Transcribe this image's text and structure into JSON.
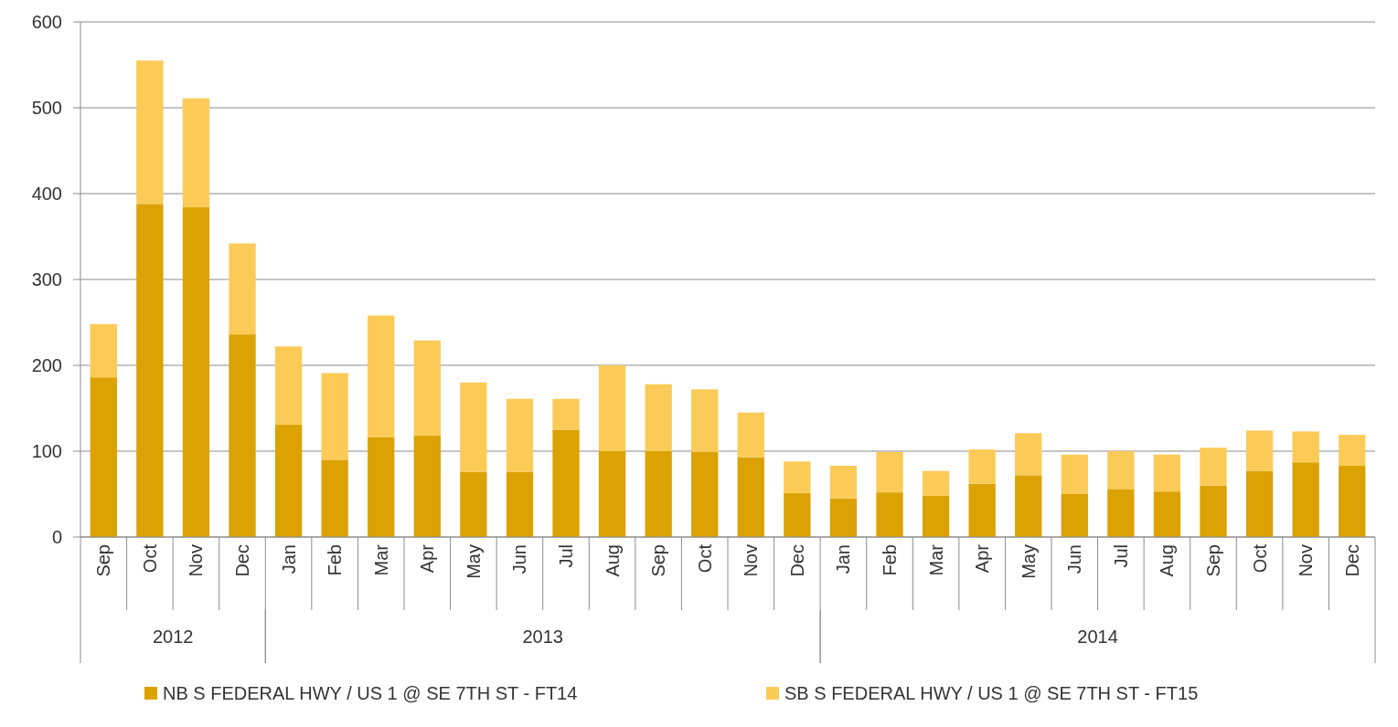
{
  "chart_data": {
    "type": "bar",
    "stacked": true,
    "categories": [
      "Sep",
      "Oct",
      "Nov",
      "Dec",
      "Jan",
      "Feb",
      "Mar",
      "Apr",
      "May",
      "Jun",
      "Jul",
      "Aug",
      "Sep",
      "Oct",
      "Nov",
      "Dec",
      "Jan",
      "Feb",
      "Mar",
      "Apr",
      "May",
      "Jun",
      "Jul",
      "Aug",
      "Sep",
      "Oct",
      "Nov",
      "Dec"
    ],
    "series": [
      {
        "name": "NB S FEDERAL HWY / US 1 @ SE 7TH ST - FT14",
        "color": "#dca204",
        "values": [
          186,
          388,
          384,
          236,
          131,
          90,
          116,
          118,
          76,
          76,
          125,
          100,
          100,
          99,
          93,
          51,
          45,
          52,
          48,
          62,
          72,
          50,
          56,
          53,
          60,
          77,
          87,
          83
        ]
      },
      {
        "name": "SB S FEDERAL HWY / US 1 @ SE 7TH ST - FT15",
        "color": "#fccb57",
        "values": [
          62,
          167,
          127,
          106,
          91,
          101,
          142,
          111,
          104,
          85,
          36,
          100,
          78,
          73,
          52,
          37,
          38,
          47,
          29,
          40,
          49,
          46,
          44,
          43,
          44,
          47,
          36,
          36
        ]
      }
    ],
    "ylim": [
      0,
      600
    ],
    "yticks": [
      0,
      100,
      200,
      300,
      400,
      500,
      600
    ],
    "grid": "y",
    "legend": "bottom",
    "annotations": [
      "2012",
      "2013",
      "2014"
    ]
  }
}
